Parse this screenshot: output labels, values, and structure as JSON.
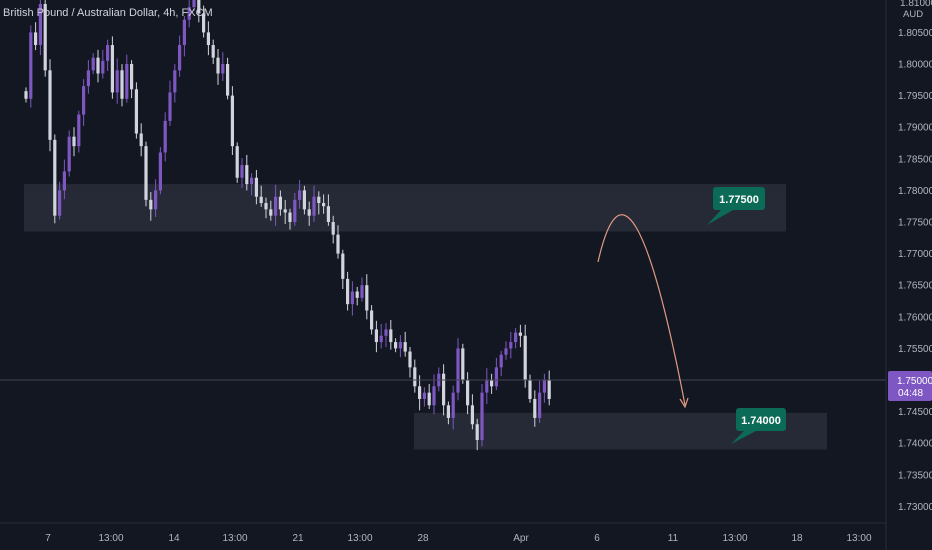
{
  "header": {
    "title": "British Pound / Australian Dollar, 4h, FXCM"
  },
  "axis": {
    "currency": "AUD",
    "top_partial_label": "1.81000"
  },
  "current_price": {
    "value": "1.75000",
    "countdown": "04:48",
    "color": "#7e57c2"
  },
  "colors": {
    "background": "#131722",
    "bull_candle": "#7e57c2",
    "bear_candle": "#d1d4dc",
    "zone_fill": "#2a2e39",
    "callout_bg": "#0c6b57",
    "projection_arrow": "#e39a82"
  },
  "chart_data": {
    "type": "candlestick",
    "title": "British Pound / Australian Dollar, 4h, FXCM",
    "y_unit": "AUD",
    "ylim": [
      1.7275,
      1.8105
    ],
    "y_ticks": [
      "1.80500",
      "1.80000",
      "1.79500",
      "1.79000",
      "1.78500",
      "1.78000",
      "1.77500",
      "1.77000",
      "1.76500",
      "1.76000",
      "1.75500",
      "1.75000",
      "1.74500",
      "1.74000",
      "1.73500",
      "1.73000"
    ],
    "x_ticks": [
      "7",
      "13:00",
      "14",
      "13:00",
      "21",
      "13:00",
      "28",
      "Apr",
      "6",
      "11",
      "13:00",
      "18",
      "13:00"
    ],
    "grid": false,
    "zones": [
      {
        "from": 1.7735,
        "to": 1.781
      },
      {
        "from": 1.739,
        "to": 1.7448
      }
    ],
    "callouts": [
      "1.77500",
      "1.74000"
    ],
    "current_price": 1.75,
    "close_path": [
      1.7945,
      1.805,
      1.803,
      1.8095,
      1.799,
      1.788,
      1.776,
      1.78,
      1.783,
      1.7885,
      1.787,
      1.792,
      1.7965,
      1.799,
      1.801,
      1.7985,
      1.8005,
      1.803,
      1.7955,
      1.799,
      1.7945,
      1.8,
      1.796,
      1.789,
      1.787,
      1.7785,
      1.777,
      1.78,
      1.786,
      1.791,
      1.7955,
      1.799,
      1.803,
      1.807,
      1.809,
      1.8105,
      1.808,
      1.805,
      1.803,
      1.801,
      1.7985,
      1.8,
      1.795,
      1.787,
      1.782,
      1.784,
      1.781,
      1.782,
      1.779,
      1.778,
      1.777,
      1.776,
      1.779,
      1.777,
      1.7765,
      1.775,
      1.7785,
      1.78,
      1.777,
      1.776,
      1.779,
      1.778,
      1.7775,
      1.775,
      1.773,
      1.77,
      1.766,
      1.762,
      1.764,
      1.763,
      1.765,
      1.761,
      1.758,
      1.756,
      1.757,
      1.758,
      1.756,
      1.755,
      1.756,
      1.7545,
      1.752,
      1.749,
      1.747,
      1.748,
      1.746,
      1.749,
      1.751,
      1.746,
      1.744,
      1.748,
      1.755,
      1.75,
      1.746,
      1.743,
      1.7405,
      1.748,
      1.75,
      1.749,
      1.752,
      1.754,
      1.755,
      1.756,
      1.7575,
      1.757,
      1.75,
      1.747,
      1.744,
      1.748,
      1.75,
      1.747
    ]
  }
}
